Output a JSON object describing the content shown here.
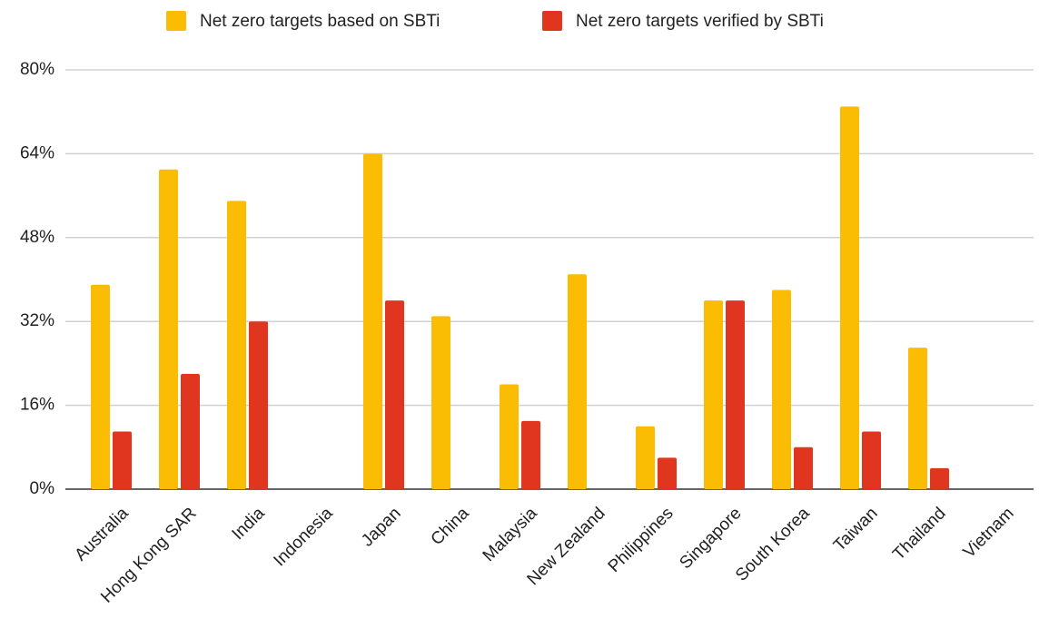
{
  "chart_data": {
    "type": "bar",
    "categories": [
      "Australia",
      "Hong Kong SAR",
      "India",
      "Indonesia",
      "Japan",
      "China",
      "Malaysia",
      "New Zealand",
      "Philippines",
      "Singapore",
      "South Korea",
      "Taiwan",
      "Thailand",
      "Vietnam"
    ],
    "series": [
      {
        "name": "Net zero targets based on SBTi",
        "color": "#fbbc04",
        "values": [
          39,
          61,
          55,
          0,
          64,
          33,
          20,
          41,
          12,
          36,
          38,
          73,
          27,
          0
        ]
      },
      {
        "name": "Net zero targets verified by SBTi",
        "color": "#e0361f",
        "values": [
          11,
          22,
          32,
          0,
          36,
          0,
          13,
          0,
          6,
          36,
          8,
          11,
          4,
          0
        ]
      }
    ],
    "ylim": [
      0,
      80
    ],
    "yticks": [
      {
        "value": 0,
        "label": "0%"
      },
      {
        "value": 16,
        "label": "16%"
      },
      {
        "value": 32,
        "label": "32%"
      },
      {
        "value": 48,
        "label": "48%"
      },
      {
        "value": 64,
        "label": "64%"
      },
      {
        "value": 80,
        "label": "80%"
      }
    ],
    "grid": true,
    "legend": "top"
  }
}
